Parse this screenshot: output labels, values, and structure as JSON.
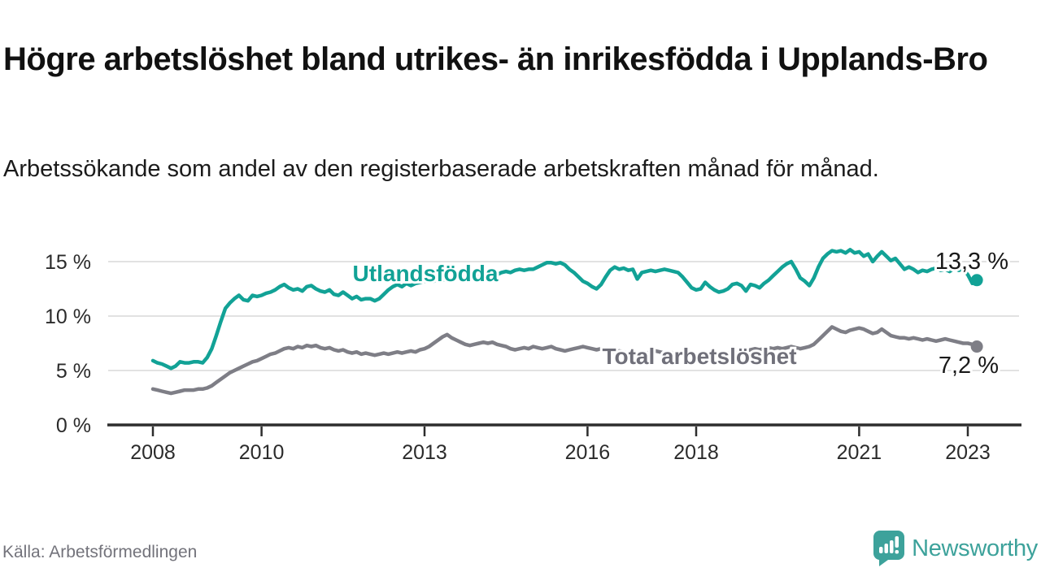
{
  "header": {
    "title": "Högre arbetslöshet bland utrikes- än inrikesfödda i Upplands-Bro",
    "subtitle": "Arbetssökande som andel av den registerbaserade arbetskraften månad för månad."
  },
  "footer": {
    "source": "Källa: Arbetsförmedlingen",
    "brand": {
      "name": "Newsworthy",
      "icon": "bar-chart-speech-bubble-icon",
      "color": "#3da29b"
    }
  },
  "colors": {
    "accent_teal": "#12a296",
    "series_gray": "#7e7e86",
    "gray_label": "#70707a",
    "axis": "#2d2d2d",
    "grid": "#d8d8d8",
    "tick_text": "#2b2b2b",
    "value_label": "#1a1a1a",
    "background": "#ffffff"
  },
  "chart_data": {
    "type": "line",
    "title": "Högre arbetslöshet bland utrikes- än inrikesfödda i Upplands-Bro",
    "xlabel": "",
    "ylabel": "",
    "x_unit": "month",
    "x_start": "2008-01",
    "x_end": "2023-03",
    "xticks": [
      2008,
      2010,
      2013,
      2016,
      2018,
      2021,
      2023
    ],
    "yticks": [
      0,
      5,
      10,
      15
    ],
    "ytick_suffix": " %",
    "ylim": [
      0,
      16.5
    ],
    "grid": "horizontal",
    "legend_position": "inline-labels",
    "series": [
      {
        "name": "Utlandsfödda",
        "color": "#12a296",
        "end_label": "13,3 %",
        "end_value": 13.3,
        "values": [
          5.9,
          5.7,
          5.6,
          5.4,
          5.2,
          5.4,
          5.8,
          5.7,
          5.7,
          5.8,
          5.8,
          5.7,
          6.2,
          7.0,
          8.2,
          9.5,
          10.7,
          11.2,
          11.6,
          11.9,
          11.5,
          11.4,
          11.9,
          11.8,
          11.9,
          12.1,
          12.2,
          12.4,
          12.7,
          12.9,
          12.6,
          12.4,
          12.5,
          12.3,
          12.7,
          12.8,
          12.5,
          12.3,
          12.2,
          12.4,
          12.0,
          11.9,
          12.2,
          11.9,
          11.6,
          11.8,
          11.5,
          11.6,
          11.6,
          11.4,
          11.6,
          12.0,
          12.4,
          12.7,
          12.9,
          12.7,
          13.0,
          12.8,
          13.0,
          13.1,
          13.2,
          13.3,
          13.2,
          13.4,
          13.3,
          13.5,
          13.4,
          13.5,
          13.6,
          13.5,
          13.7,
          13.6,
          13.7,
          13.8,
          13.7,
          13.9,
          13.8,
          14.0,
          14.1,
          14.0,
          14.2,
          14.3,
          14.2,
          14.3,
          14.3,
          14.5,
          14.7,
          14.9,
          14.9,
          14.8,
          14.9,
          14.7,
          14.3,
          14.0,
          13.6,
          13.2,
          13.0,
          12.7,
          12.5,
          12.9,
          13.6,
          14.2,
          14.5,
          14.3,
          14.4,
          14.2,
          14.3,
          13.4,
          14.0,
          14.1,
          14.2,
          14.1,
          14.2,
          14.3,
          14.2,
          14.1,
          14.0,
          13.6,
          13.1,
          12.6,
          12.4,
          12.5,
          13.1,
          12.7,
          12.4,
          12.2,
          12.3,
          12.5,
          12.9,
          13.0,
          12.8,
          12.3,
          12.9,
          12.8,
          12.6,
          13.0,
          13.3,
          13.7,
          14.1,
          14.5,
          14.8,
          15.0,
          14.3,
          13.5,
          13.2,
          12.8,
          13.5,
          14.5,
          15.3,
          15.7,
          16.0,
          15.9,
          16.0,
          15.8,
          16.1,
          15.8,
          15.9,
          15.5,
          15.7,
          15.0,
          15.5,
          15.9,
          15.5,
          15.1,
          15.3,
          14.8,
          14.3,
          14.5,
          14.3,
          14.0,
          14.2,
          14.1,
          14.3,
          14.4,
          14.2,
          14.3,
          14.1,
          14.4,
          14.2,
          14.3,
          13.8,
          13.0,
          13.3
        ]
      },
      {
        "name": "Total arbetslöshet",
        "color": "#7e7e86",
        "end_label": "7,2 %",
        "end_value": 7.2,
        "values": [
          3.3,
          3.2,
          3.1,
          3.0,
          2.9,
          3.0,
          3.1,
          3.2,
          3.2,
          3.2,
          3.3,
          3.3,
          3.4,
          3.6,
          3.9,
          4.2,
          4.5,
          4.8,
          5.0,
          5.2,
          5.4,
          5.6,
          5.8,
          5.9,
          6.1,
          6.3,
          6.5,
          6.6,
          6.8,
          7.0,
          7.1,
          7.0,
          7.2,
          7.1,
          7.3,
          7.2,
          7.3,
          7.1,
          7.0,
          7.1,
          6.9,
          6.8,
          6.9,
          6.7,
          6.6,
          6.7,
          6.5,
          6.6,
          6.5,
          6.4,
          6.5,
          6.6,
          6.5,
          6.6,
          6.7,
          6.6,
          6.7,
          6.8,
          6.7,
          6.9,
          7.0,
          7.2,
          7.5,
          7.8,
          8.1,
          8.3,
          8.0,
          7.8,
          7.6,
          7.4,
          7.3,
          7.4,
          7.5,
          7.6,
          7.5,
          7.6,
          7.4,
          7.3,
          7.2,
          7.0,
          6.9,
          7.0,
          7.1,
          7.0,
          7.2,
          7.1,
          7.0,
          7.1,
          7.2,
          7.0,
          6.9,
          6.8,
          6.9,
          7.0,
          7.1,
          7.2,
          7.1,
          7.0,
          6.9,
          7.0,
          6.9,
          6.8,
          6.7,
          6.8,
          6.7,
          6.6,
          6.7,
          6.6,
          6.7,
          6.6,
          6.7,
          6.8,
          6.7,
          6.6,
          6.7,
          6.6,
          6.5,
          6.6,
          6.5,
          6.6,
          6.5,
          6.4,
          6.5,
          6.4,
          6.5,
          6.6,
          6.5,
          6.6,
          6.7,
          6.6,
          6.7,
          6.8,
          6.9,
          7.0,
          6.9,
          7.0,
          7.1,
          7.0,
          7.1,
          7.0,
          7.1,
          7.2,
          7.1,
          7.0,
          7.1,
          7.2,
          7.4,
          7.8,
          8.2,
          8.6,
          9.0,
          8.8,
          8.6,
          8.5,
          8.7,
          8.8,
          8.9,
          8.8,
          8.6,
          8.4,
          8.5,
          8.8,
          8.5,
          8.2,
          8.1,
          8.0,
          8.0,
          7.9,
          8.0,
          7.9,
          7.8,
          7.9,
          7.8,
          7.7,
          7.8,
          7.9,
          7.8,
          7.7,
          7.6,
          7.5,
          7.5,
          7.4,
          7.2
        ]
      }
    ]
  }
}
